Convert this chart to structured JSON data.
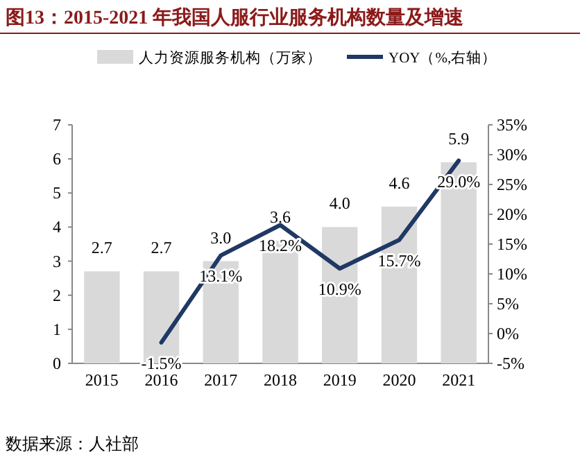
{
  "chart_data": {
    "type": "bar",
    "title": "图13：2015-2021 年我国人服行业服务机构数量及增速",
    "categories": [
      "2015",
      "2016",
      "2017",
      "2018",
      "2019",
      "2020",
      "2021"
    ],
    "series": [
      {
        "name": "人力资源服务机构（万家）",
        "color": "#d9d9d9",
        "values": [
          2.7,
          2.7,
          3.0,
          3.6,
          4.0,
          4.6,
          5.9
        ],
        "value_labels": [
          "2.7",
          "2.7",
          "3.0",
          "3.6",
          "4.0",
          "4.6",
          "5.9"
        ]
      },
      {
        "name": "YOY（%,右轴）",
        "type": "line",
        "axis": "y2",
        "color": "#1f3864",
        "values": [
          null,
          -1.5,
          13.1,
          18.2,
          10.9,
          15.7,
          29.0
        ],
        "value_labels": [
          null,
          "-1.5%",
          "13.1%",
          "18.2%",
          "10.9%",
          "15.7%",
          "29.0%"
        ]
      }
    ],
    "ylim": [
      0,
      7
    ],
    "yticks": [
      0,
      1,
      2,
      3,
      4,
      5,
      6,
      7
    ],
    "y2lim": [
      -5,
      35
    ],
    "y2ticks": [
      {
        "value": -5,
        "label": "-5%"
      },
      {
        "value": 0,
        "label": "0%"
      },
      {
        "value": 5,
        "label": "5%"
      },
      {
        "value": 10,
        "label": "10%"
      },
      {
        "value": 15,
        "label": "15%"
      },
      {
        "value": 20,
        "label": "20%"
      },
      {
        "value": 25,
        "label": "25%"
      },
      {
        "value": 30,
        "label": "30%"
      },
      {
        "value": 35,
        "label": "35%"
      }
    ],
    "legend": "top",
    "annotations": [
      "数据来源：人社部"
    ]
  }
}
